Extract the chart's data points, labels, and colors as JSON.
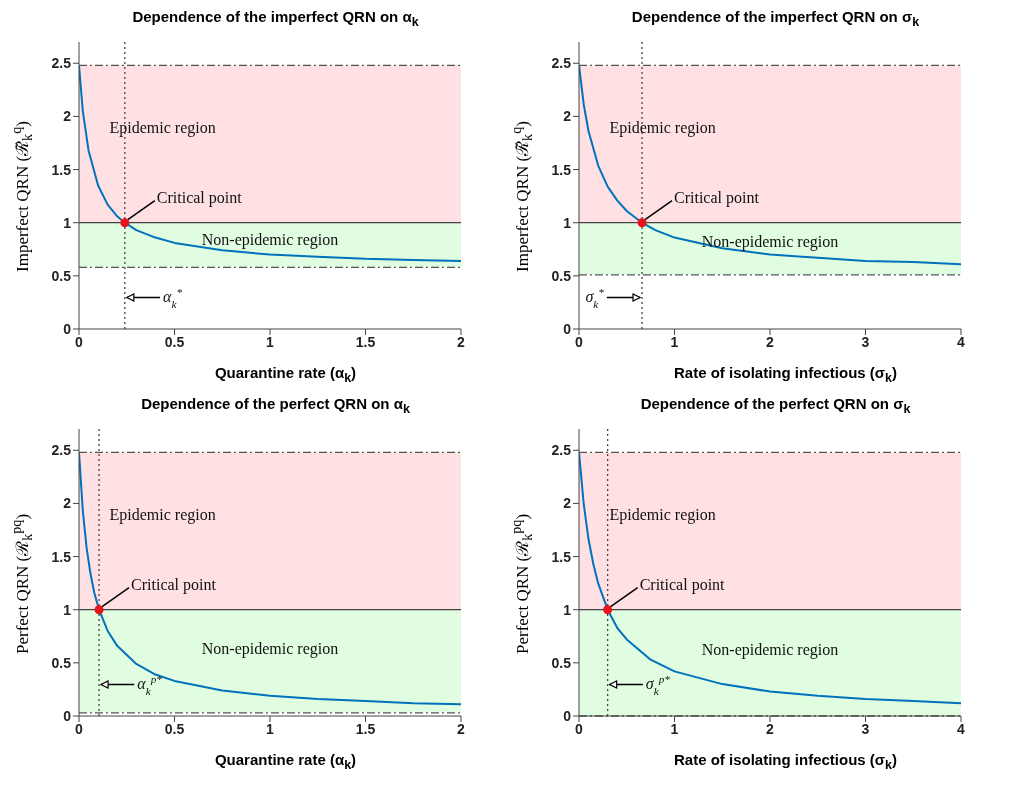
{
  "chart_data": [
    {
      "type": "line",
      "title": "Dependence of the imperfect QRN on α$_{k}$",
      "xlabel": "Quarantine rate (α$_{k}$)",
      "ylabel": "Imperfect QRN (ℛ̃$_{k}$$^{q}$)",
      "xlim": [
        0,
        2
      ],
      "xticks": [
        0,
        0.5,
        1,
        1.5,
        2
      ],
      "ylim": [
        0,
        2.7
      ],
      "yticks": [
        0,
        0.5,
        1,
        1.5,
        2,
        2.5
      ],
      "series": [
        {
          "color": "#0072bd",
          "marker": "none",
          "line_style": "solid",
          "x": [
            0,
            0.02,
            0.05,
            0.1,
            0.15,
            0.2,
            0.24,
            0.3,
            0.4,
            0.5,
            0.75,
            1,
            1.25,
            1.5,
            1.75,
            2
          ],
          "values": [
            2.48,
            2.05,
            1.68,
            1.35,
            1.17,
            1.06,
            1.0,
            0.93,
            0.86,
            0.81,
            0.74,
            0.7,
            0.68,
            0.66,
            0.65,
            0.64
          ]
        },
        {
          "type": "scatter",
          "color": "#e8141c",
          "marker": "circle",
          "x": [
            0.24
          ],
          "values": [
            1.0
          ]
        }
      ],
      "bands": [
        {
          "axis": "y",
          "from": 1,
          "to": 2.48,
          "color": "#ffe1e4"
        },
        {
          "axis": "y",
          "from": 0.58,
          "to": 1,
          "color": "#e1fde1"
        }
      ],
      "ref_lines": [
        {
          "axis": "y",
          "value": 2.48,
          "color": "#555555",
          "line_style": "dashed"
        },
        {
          "axis": "y",
          "value": 1,
          "color": "#444444",
          "line_style": "solid"
        },
        {
          "axis": "y",
          "value": 0.58,
          "color": "#555555",
          "line_style": "dashed"
        },
        {
          "axis": "x",
          "value": 0.24,
          "color": "#444444",
          "line_style": "dotted"
        }
      ],
      "annotations": [
        "Epidemic region",
        "Non-epidemic region",
        {
          "text": "Critical point",
          "x": 0.24,
          "y": 1.0
        },
        "α$_{k}$$^{*}$"
      ]
    },
    {
      "type": "line",
      "title": "Dependence of the imperfect QRN on σ$_{k}$",
      "xlabel": "Rate of isolating infectious (σ$_{k}$)",
      "ylabel": "Imperfect QRN (ℛ̃$_{k}$$^{q}$)",
      "xlim": [
        0,
        4
      ],
      "xticks": [
        0,
        1,
        2,
        3,
        4
      ],
      "ylim": [
        0,
        2.7
      ],
      "yticks": [
        0,
        0.5,
        1,
        1.5,
        2,
        2.5
      ],
      "series": [
        {
          "color": "#0072bd",
          "marker": "none",
          "line_style": "solid",
          "x": [
            0,
            0.05,
            0.1,
            0.2,
            0.3,
            0.4,
            0.5,
            0.66,
            0.8,
            1,
            1.5,
            2,
            2.5,
            3,
            3.5,
            4
          ],
          "values": [
            2.48,
            2.11,
            1.86,
            1.54,
            1.34,
            1.21,
            1.11,
            1.0,
            0.93,
            0.86,
            0.76,
            0.7,
            0.67,
            0.64,
            0.63,
            0.61
          ]
        },
        {
          "type": "scatter",
          "color": "#e8141c",
          "marker": "circle",
          "x": [
            0.66
          ],
          "values": [
            1.0
          ]
        }
      ],
      "bands": [
        {
          "axis": "y",
          "from": 1,
          "to": 2.48,
          "color": "#ffe1e4"
        },
        {
          "axis": "y",
          "from": 0.51,
          "to": 1,
          "color": "#e1fde1"
        }
      ],
      "ref_lines": [
        {
          "axis": "y",
          "value": 2.48,
          "color": "#555555",
          "line_style": "dashed"
        },
        {
          "axis": "y",
          "value": 1,
          "color": "#444444",
          "line_style": "solid"
        },
        {
          "axis": "y",
          "value": 0.51,
          "color": "#555555",
          "line_style": "dashed"
        },
        {
          "axis": "x",
          "value": 0.66,
          "color": "#444444",
          "line_style": "dotted"
        }
      ],
      "annotations": [
        "Epidemic region",
        "Non-epidemic region",
        {
          "text": "Critical point",
          "x": 0.66,
          "y": 1.0
        },
        "σ$_{k}$$^{*}$"
      ]
    },
    {
      "type": "line",
      "title": "Dependence of the perfect QRN on α$_{k}$",
      "xlabel": "Quarantine rate (α$_{k}$)",
      "ylabel": "Perfect QRN (ℛ$_{k}$$^{pq}$)",
      "xlim": [
        0,
        2
      ],
      "xticks": [
        0,
        0.5,
        1,
        1.5,
        2
      ],
      "ylim": [
        0,
        2.7
      ],
      "yticks": [
        0,
        0.5,
        1,
        1.5,
        2,
        2.5
      ],
      "series": [
        {
          "color": "#0072bd",
          "marker": "none",
          "line_style": "solid",
          "x": [
            0,
            0.02,
            0.04,
            0.06,
            0.08,
            0.105,
            0.15,
            0.2,
            0.3,
            0.4,
            0.5,
            0.75,
            1,
            1.25,
            1.5,
            1.75,
            2
          ],
          "values": [
            2.48,
            1.93,
            1.58,
            1.34,
            1.16,
            1.0,
            0.8,
            0.66,
            0.49,
            0.39,
            0.33,
            0.24,
            0.19,
            0.16,
            0.14,
            0.12,
            0.11
          ]
        },
        {
          "type": "scatter",
          "color": "#e8141c",
          "marker": "circle",
          "x": [
            0.105
          ],
          "values": [
            1.0
          ]
        }
      ],
      "bands": [
        {
          "axis": "y",
          "from": 1,
          "to": 2.48,
          "color": "#ffe1e4"
        },
        {
          "axis": "y",
          "from": 0.03,
          "to": 1,
          "color": "#e1fde1"
        }
      ],
      "ref_lines": [
        {
          "axis": "y",
          "value": 2.48,
          "color": "#555555",
          "line_style": "dashed"
        },
        {
          "axis": "y",
          "value": 1,
          "color": "#444444",
          "line_style": "solid"
        },
        {
          "axis": "y",
          "value": 0.03,
          "color": "#555555",
          "line_style": "dashed"
        },
        {
          "axis": "x",
          "value": 0.105,
          "color": "#444444",
          "line_style": "dotted"
        }
      ],
      "annotations": [
        "Epidemic region",
        "Non-epidemic region",
        {
          "text": "Critical point",
          "x": 0.105,
          "y": 1.0
        },
        "α$_{k}$$^{p*}$"
      ]
    },
    {
      "type": "line",
      "title": "Dependence of the perfect QRN on σ$_{k}$",
      "xlabel": "Rate of isolating infectious (σ$_{k}$)",
      "ylabel": "Perfect QRN (ℛ$_{k}$$^{pq}$)",
      "xlim": [
        0,
        4
      ],
      "xticks": [
        0,
        1,
        2,
        3,
        4
      ],
      "ylim": [
        0,
        2.7
      ],
      "yticks": [
        0,
        0.5,
        1,
        1.5,
        2,
        2.5
      ],
      "series": [
        {
          "color": "#0072bd",
          "marker": "none",
          "line_style": "solid",
          "x": [
            0,
            0.05,
            0.1,
            0.15,
            0.2,
            0.3,
            0.4,
            0.5,
            0.75,
            1,
            1.5,
            2,
            2.5,
            3,
            3.5,
            4
          ],
          "values": [
            2.48,
            1.99,
            1.66,
            1.43,
            1.25,
            1.0,
            0.83,
            0.72,
            0.53,
            0.42,
            0.3,
            0.23,
            0.19,
            0.16,
            0.14,
            0.12
          ]
        },
        {
          "type": "scatter",
          "color": "#e8141c",
          "marker": "circle",
          "x": [
            0.3
          ],
          "values": [
            1.0
          ]
        }
      ],
      "bands": [
        {
          "axis": "y",
          "from": 1,
          "to": 2.48,
          "color": "#ffe1e4"
        },
        {
          "axis": "y",
          "from": 0,
          "to": 1,
          "color": "#e1fde1"
        }
      ],
      "ref_lines": [
        {
          "axis": "y",
          "value": 2.48,
          "color": "#555555",
          "line_style": "dashed"
        },
        {
          "axis": "y",
          "value": 1,
          "color": "#444444",
          "line_style": "solid"
        },
        {
          "axis": "y",
          "value": 0,
          "color": "#555555",
          "line_style": "dashed"
        },
        {
          "axis": "x",
          "value": 0.3,
          "color": "#444444",
          "line_style": "dotted"
        }
      ],
      "annotations": [
        "Epidemic region",
        "Non-epidemic region",
        {
          "text": "Critical point",
          "x": 0.3,
          "y": 1.0
        },
        "σ$_{k}$$^{p*}$"
      ]
    }
  ]
}
